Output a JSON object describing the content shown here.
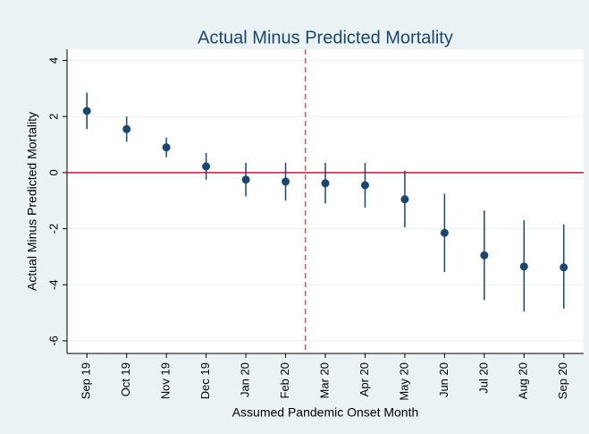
{
  "chart_data": {
    "type": "errorbar",
    "title": "Actual Minus Predicted Mortality",
    "x_label": "Assumed Pandemic Onset Month",
    "y_label": "Actual Minus Predicted Mortality",
    "categories": [
      "Sep 19",
      "Oct 19",
      "Nov 19",
      "Dec 19",
      "Jan 20",
      "Feb 20",
      "Mar 20",
      "Apr 20",
      "May 20",
      "Jun 20",
      "Jul 20",
      "Aug 20",
      "Sep 20"
    ],
    "values": [
      2.2,
      1.55,
      0.9,
      0.22,
      -0.25,
      -0.32,
      -0.38,
      -0.45,
      -0.95,
      -2.15,
      -2.95,
      -3.35,
      -3.38
    ],
    "lower": [
      1.55,
      1.1,
      0.55,
      -0.25,
      -0.85,
      -1.0,
      -1.1,
      -1.25,
      -1.95,
      -3.55,
      -4.55,
      -4.95,
      -4.85
    ],
    "upper": [
      2.85,
      2.0,
      1.25,
      0.7,
      0.35,
      0.35,
      0.35,
      0.35,
      0.07,
      -0.75,
      -1.35,
      -1.7,
      -1.85
    ],
    "color": "#1a476f",
    "hline": 0,
    "hline_color": "#a8243a",
    "vline_color": "#e0303a",
    "ylim": [
      -6.45,
      4.4
    ],
    "yticks": [
      -6,
      -4,
      -2,
      0,
      2,
      4
    ],
    "grid": true
  }
}
